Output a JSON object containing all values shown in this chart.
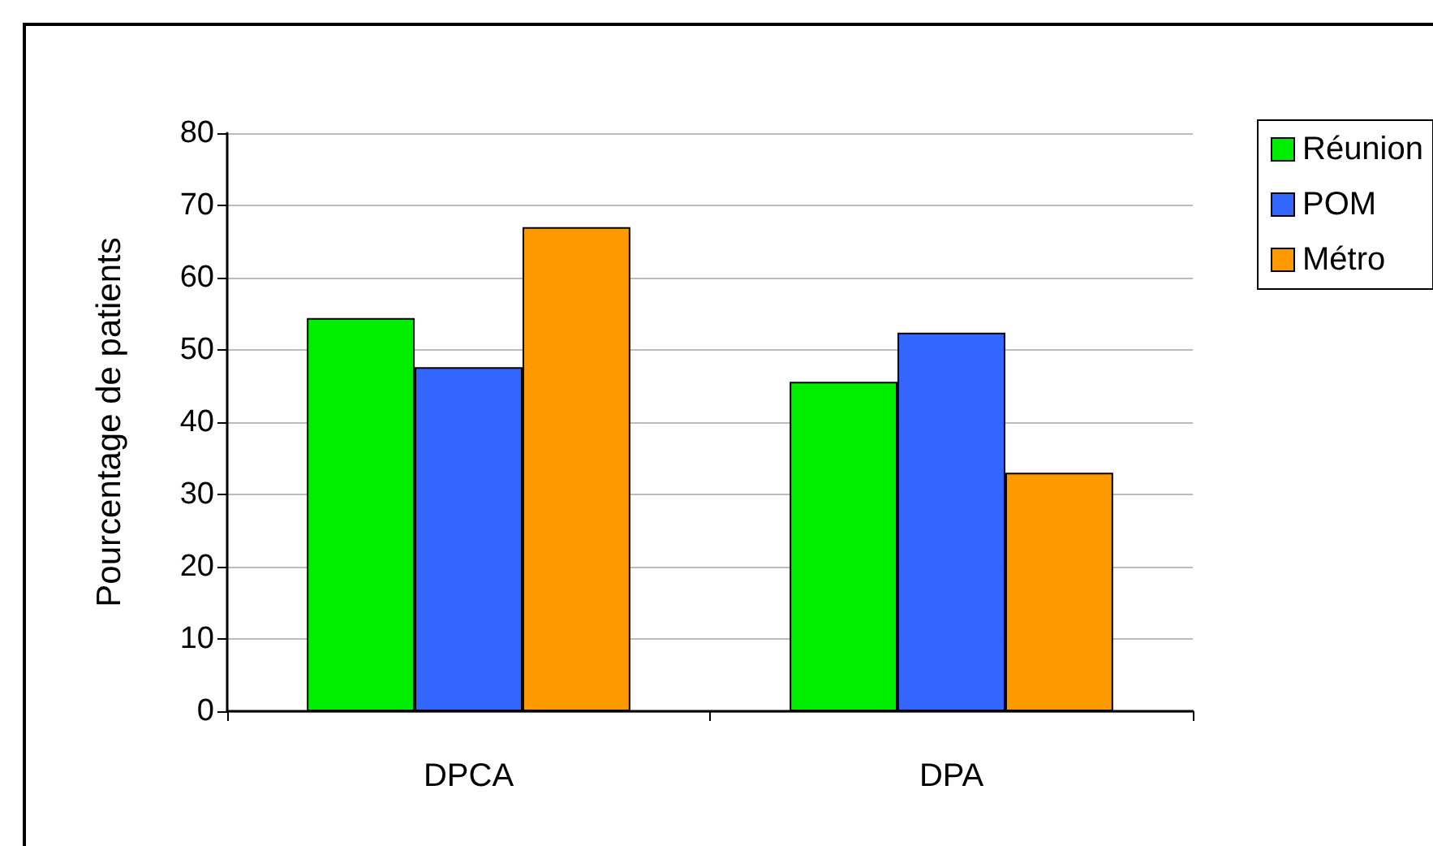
{
  "chart_data": {
    "type": "bar",
    "ylabel": "Pourcentage de patients",
    "categories": [
      "DPCA",
      "DPA"
    ],
    "series": [
      {
        "name": "Réunion",
        "color": "#00ee00",
        "values": [
          54.4,
          45.6
        ]
      },
      {
        "name": "POM",
        "color": "#3366ff",
        "values": [
          47.6,
          52.4
        ]
      },
      {
        "name": "Métro",
        "color": "#ff9900",
        "values": [
          67.0,
          33.0
        ]
      }
    ],
    "ylim": [
      0,
      80
    ],
    "yticks": [
      0,
      10,
      20,
      30,
      40,
      50,
      60,
      70,
      80
    ],
    "grid": "y",
    "legend": "top right"
  }
}
